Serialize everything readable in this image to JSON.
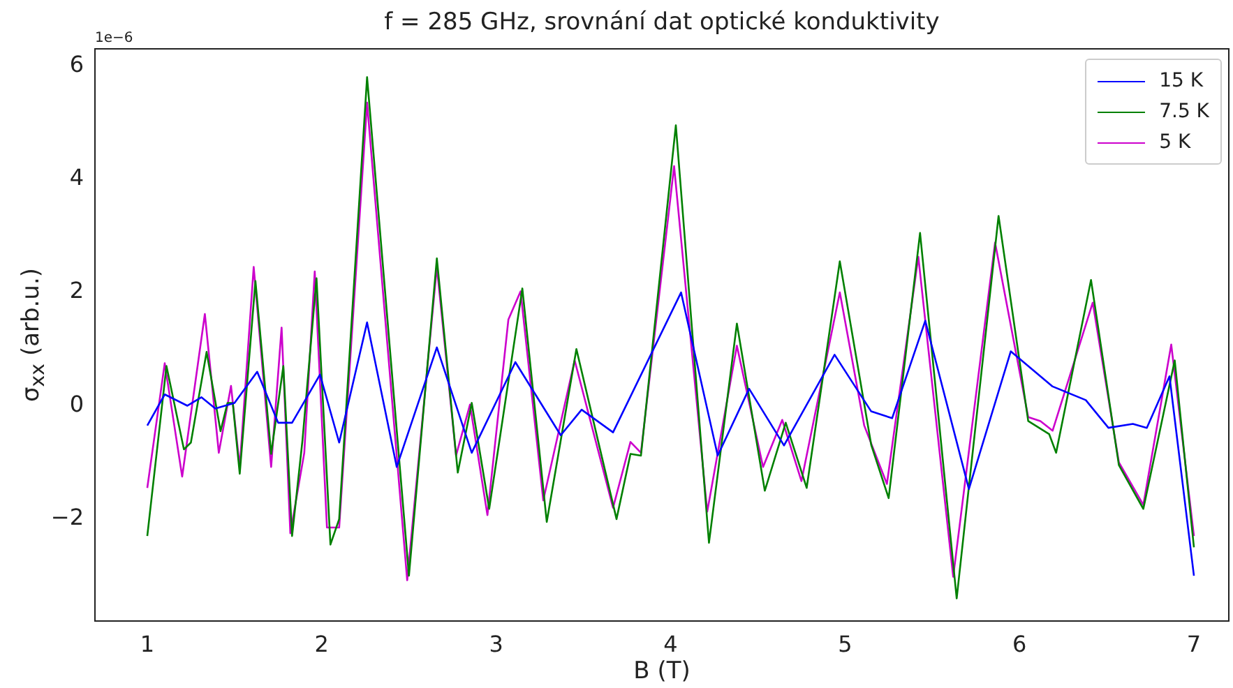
{
  "chart_data": {
    "type": "line",
    "title": "f = 285 GHz, srovnání dat optické konduktivity",
    "xlabel": "B (T)",
    "ylabel": "σ$_{xx}$ (arb.u.)",
    "annotations": [
      "1e−6"
    ],
    "xlim": [
      0.7,
      7.2
    ],
    "xticks": [
      1,
      2,
      3,
      4,
      5,
      6,
      7
    ],
    "ylim": [
      -3.8,
      6.3
    ],
    "yticks": [
      {
        "value": -2,
        "label": "−2"
      },
      0,
      2,
      4,
      6
    ],
    "grid": false,
    "legend": "top right",
    "marker": "none",
    "line_style": "solid",
    "series": [
      {
        "name": "15 K",
        "color": "#0000ff",
        "x": [
          1.0,
          1.1,
          1.23,
          1.31,
          1.39,
          1.5,
          1.63,
          1.75,
          1.83,
          1.99,
          2.1,
          2.26,
          2.43,
          2.66,
          2.86,
          3.11,
          3.37,
          3.49,
          3.67,
          4.06,
          4.27,
          4.45,
          4.65,
          4.94,
          5.15,
          5.27,
          5.46,
          5.71,
          5.95,
          6.19,
          6.38,
          6.51,
          6.65,
          6.73,
          6.86,
          7.0
        ],
        "values": [
          -0.35,
          0.2,
          0,
          0.15,
          -0.05,
          0.05,
          0.6,
          -0.3,
          -0.3,
          0.55,
          -0.65,
          1.47,
          -1.08,
          1.03,
          -0.83,
          0.77,
          -0.52,
          -0.07,
          -0.47,
          2.0,
          -0.88,
          0.3,
          -0.7,
          0.9,
          -0.1,
          -0.22,
          1.5,
          -1.47,
          0.96,
          0.34,
          0.1,
          -0.39,
          -0.32,
          -0.39,
          0.52,
          -3.0
        ]
      },
      {
        "name": "7.5 K",
        "color": "#008000",
        "x": [
          1.0,
          1.11,
          1.21,
          1.25,
          1.34,
          1.42,
          1.46,
          1.49,
          1.53,
          1.62,
          1.71,
          1.78,
          1.83,
          1.89,
          1.97,
          2.05,
          2.1,
          2.26,
          2.5,
          2.66,
          2.78,
          2.86,
          2.96,
          3.15,
          3.29,
          3.46,
          3.69,
          3.77,
          3.83,
          4.03,
          4.22,
          4.38,
          4.54,
          4.66,
          4.78,
          4.97,
          5.15,
          5.25,
          5.43,
          5.64,
          5.88,
          6.05,
          6.17,
          6.21,
          6.41,
          6.57,
          6.71,
          6.89,
          7.0
        ],
        "values": [
          -2.3,
          0.7,
          -0.77,
          -0.65,
          0.95,
          -0.45,
          0.05,
          0.05,
          -1.2,
          2.2,
          -0.85,
          0.7,
          -2.3,
          -0.6,
          2.25,
          -2.45,
          -2.0,
          5.8,
          -3.0,
          2.6,
          -1.18,
          0.05,
          -1.82,
          2.07,
          -2.05,
          1.0,
          -2.0,
          -0.85,
          -0.88,
          4.95,
          -2.42,
          1.45,
          -1.5,
          -0.3,
          -1.45,
          2.55,
          -0.69,
          -1.63,
          3.05,
          -3.4,
          3.35,
          -0.27,
          -0.5,
          -0.83,
          2.22,
          -1.05,
          -1.82,
          0.8,
          -2.5
        ]
      },
      {
        "name": "5 K",
        "color": "#cc00cc",
        "x": [
          1.0,
          1.1,
          1.2,
          1.33,
          1.41,
          1.48,
          1.53,
          1.61,
          1.71,
          1.77,
          1.82,
          1.9,
          1.96,
          2.03,
          2.1,
          2.26,
          2.49,
          2.66,
          2.77,
          2.85,
          2.95,
          3.07,
          3.14,
          3.27,
          3.45,
          3.67,
          3.77,
          3.83,
          4.02,
          4.21,
          4.38,
          4.53,
          4.64,
          4.75,
          4.97,
          5.11,
          5.24,
          5.42,
          5.62,
          5.86,
          6.05,
          6.12,
          6.19,
          6.42,
          6.57,
          6.71,
          6.87,
          7.0
        ],
        "values": [
          -1.45,
          0.75,
          -1.25,
          1.62,
          -0.83,
          0.35,
          -1.08,
          2.45,
          -1.08,
          1.38,
          -2.25,
          -0.83,
          2.37,
          -2.15,
          -2.15,
          5.35,
          -3.08,
          2.45,
          -0.88,
          0.02,
          -1.93,
          1.52,
          2.02,
          -1.67,
          0.8,
          -1.8,
          -0.64,
          -0.83,
          4.23,
          -1.87,
          1.06,
          -1.08,
          -0.25,
          -1.33,
          2.0,
          -0.35,
          -1.38,
          2.63,
          -3.02,
          2.88,
          -0.2,
          -0.27,
          -0.44,
          1.82,
          -1.0,
          -1.75,
          1.08,
          -2.3
        ]
      }
    ]
  }
}
